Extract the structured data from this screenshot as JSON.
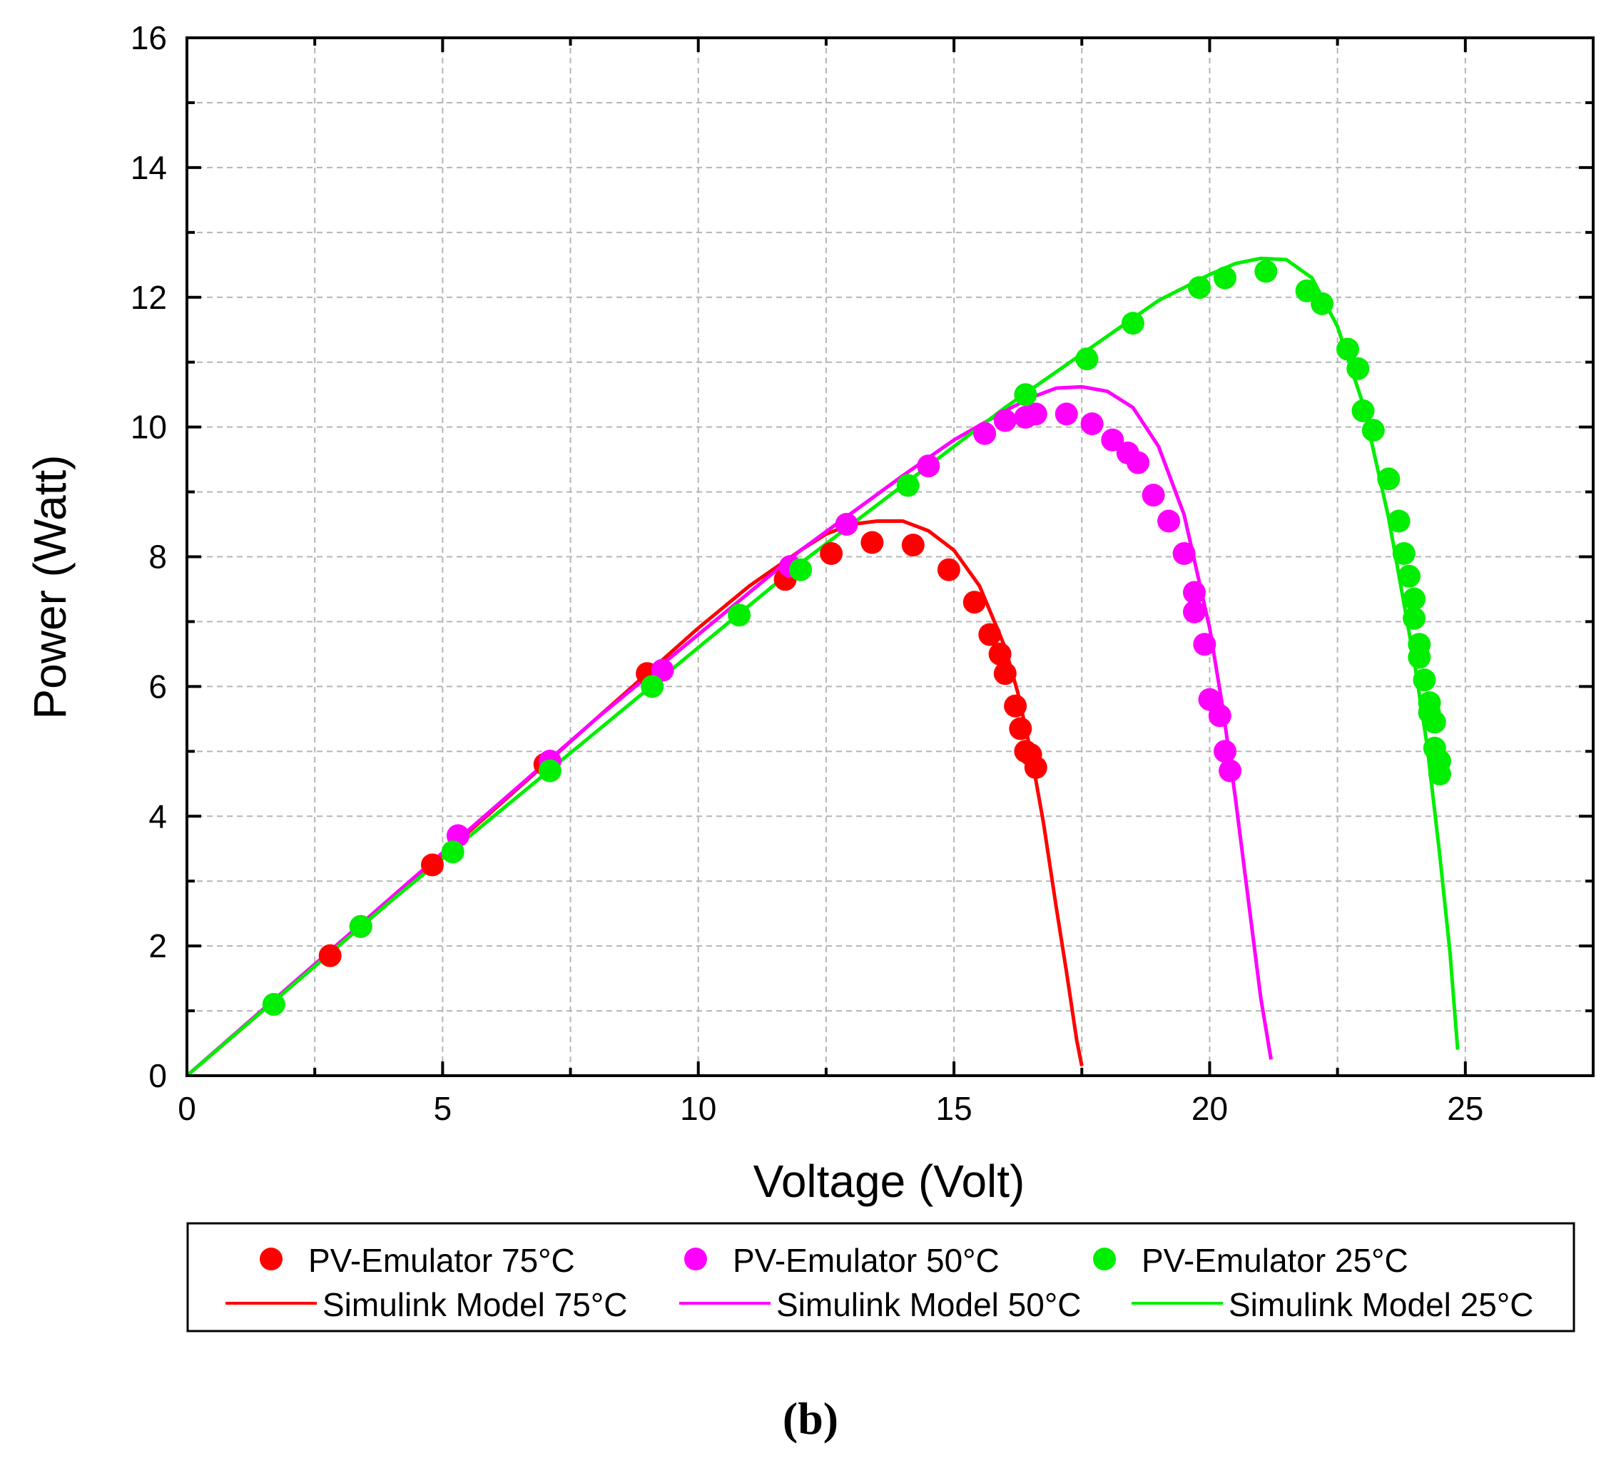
{
  "chart_data": {
    "type": "scatter",
    "title": "",
    "xlabel": "Voltage (Volt)",
    "ylabel": "Power (Watt)",
    "xlim": [
      0,
      27.5
    ],
    "ylim": [
      0,
      16
    ],
    "xticks": [
      0,
      5,
      10,
      15,
      20,
      25
    ],
    "yticks": [
      0,
      2,
      4,
      6,
      8,
      10,
      12,
      14,
      16
    ],
    "xtick_labels": [
      "0",
      "5",
      "10",
      "15",
      "20",
      "25"
    ],
    "ytick_labels": [
      "0",
      "2",
      "4",
      "6",
      "8",
      "10",
      "12",
      "14",
      "16"
    ],
    "grid": true,
    "legend_position": "bottom",
    "caption": "(b)",
    "colors": {
      "t75": "#ff0000",
      "t50": "#ff00ff",
      "t25": "#00ee00"
    },
    "series": [
      {
        "name": "PV-Emulator 75°C",
        "kind": "scatter",
        "color": "#ff0000",
        "x": [
          2.8,
          4.8,
          7.0,
          9.0,
          11.7,
          12.6,
          13.4,
          14.2,
          14.9,
          15.4,
          15.7,
          15.9,
          16.0,
          16.2,
          16.3,
          16.4,
          16.5,
          16.6
        ],
        "y": [
          1.85,
          3.25,
          4.8,
          6.2,
          7.65,
          8.05,
          8.22,
          8.18,
          7.8,
          7.3,
          6.8,
          6.5,
          6.2,
          5.7,
          5.35,
          5.0,
          4.95,
          4.75
        ]
      },
      {
        "name": "PV-Emulator 50°C",
        "kind": "scatter",
        "color": "#ff00ff",
        "x": [
          3.4,
          5.3,
          7.1,
          9.3,
          11.8,
          12.9,
          14.5,
          15.6,
          16.0,
          16.4,
          16.6,
          17.2,
          17.7,
          18.1,
          18.4,
          18.6,
          18.9,
          19.2,
          19.5,
          19.7,
          19.7,
          19.9,
          20.0,
          20.2,
          20.3,
          20.4
        ],
        "y": [
          2.3,
          3.7,
          4.85,
          6.25,
          7.85,
          8.5,
          9.4,
          9.9,
          10.1,
          10.15,
          10.2,
          10.2,
          10.05,
          9.8,
          9.6,
          9.45,
          8.95,
          8.55,
          8.05,
          7.45,
          7.15,
          6.65,
          5.8,
          5.55,
          5.0,
          4.7
        ]
      },
      {
        "name": "PV-Emulator 25°C",
        "kind": "scatter",
        "color": "#00ee00",
        "x": [
          1.7,
          3.4,
          5.2,
          7.1,
          9.1,
          10.8,
          12.0,
          14.1,
          16.4,
          17.6,
          18.5,
          19.8,
          20.3,
          21.1,
          21.9,
          22.2,
          22.7,
          22.9,
          23.0,
          23.2,
          23.5,
          23.7,
          23.8,
          23.9,
          24.0,
          24.0,
          24.1,
          24.1,
          24.2,
          24.3,
          24.3,
          24.4,
          24.4,
          24.5,
          24.5
        ],
        "y": [
          1.1,
          2.3,
          3.45,
          4.7,
          6.0,
          7.1,
          7.8,
          9.1,
          10.5,
          11.05,
          11.6,
          12.15,
          12.3,
          12.4,
          12.1,
          11.9,
          11.2,
          10.9,
          10.25,
          9.95,
          9.2,
          8.55,
          8.05,
          7.7,
          7.35,
          7.05,
          6.65,
          6.45,
          6.1,
          5.75,
          5.6,
          5.45,
          5.05,
          4.85,
          4.65
        ]
      },
      {
        "name": "Simulink Model 75°C",
        "kind": "line",
        "color": "#ff0000",
        "x": [
          0,
          2,
          4,
          6,
          8,
          10,
          11,
          12,
          12.5,
          13,
          13.5,
          14,
          14.5,
          15,
          15.5,
          16,
          16.25,
          16.5,
          16.75,
          17,
          17.2,
          17.4,
          17.5
        ],
        "y": [
          0,
          1.35,
          2.7,
          4.1,
          5.5,
          6.9,
          7.55,
          8.1,
          8.35,
          8.5,
          8.55,
          8.55,
          8.4,
          8.1,
          7.55,
          6.6,
          5.9,
          5.0,
          3.9,
          2.6,
          1.6,
          0.55,
          0.15
        ]
      },
      {
        "name": "Simulink Model 50°C",
        "kind": "line",
        "color": "#ff00ff",
        "x": [
          0,
          4,
          8,
          12,
          14,
          15,
          16,
          16.5,
          17,
          17.5,
          18,
          18.5,
          19,
          19.5,
          20,
          20.25,
          20.5,
          20.75,
          21,
          21.2
        ],
        "y": [
          0,
          2.75,
          5.5,
          8.1,
          9.25,
          9.8,
          10.25,
          10.45,
          10.6,
          10.62,
          10.55,
          10.3,
          9.7,
          8.65,
          6.9,
          5.7,
          4.3,
          2.75,
          1.2,
          0.25
        ]
      },
      {
        "name": "Simulink Model 25°C",
        "kind": "line",
        "color": "#00ee00",
        "x": [
          0,
          4,
          8,
          12,
          16,
          18,
          19,
          20,
          20.5,
          21,
          21.5,
          22,
          22.5,
          23,
          23.5,
          24,
          24.25,
          24.5,
          24.7,
          24.85
        ],
        "y": [
          0,
          2.7,
          5.3,
          7.9,
          10.3,
          11.4,
          11.95,
          12.35,
          12.52,
          12.6,
          12.58,
          12.3,
          11.55,
          10.35,
          8.6,
          6.4,
          5.1,
          3.4,
          1.9,
          0.4
        ]
      }
    ]
  }
}
